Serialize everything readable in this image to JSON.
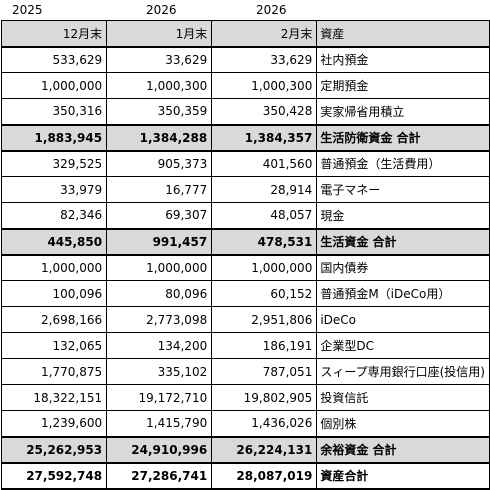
{
  "years": [
    "2025",
    "2026",
    "2026"
  ],
  "header": {
    "col1": "12月末",
    "col2": "1月末",
    "col3": "2月末",
    "col4": "資産"
  },
  "rows": [
    {
      "type": "normal",
      "v1": "533,629",
      "v2": "33,629",
      "v3": "33,629",
      "label": "社内預金"
    },
    {
      "type": "normal",
      "v1": "1,000,000",
      "v2": "1,000,300",
      "v3": "1,000,300",
      "label": "定期預金"
    },
    {
      "type": "normal",
      "v1": "350,316",
      "v2": "350,359",
      "v3": "350,428",
      "label": "実家帰省用積立"
    },
    {
      "type": "sub",
      "v1": "1,883,945",
      "v2": "1,384,288",
      "v3": "1,384,357",
      "label": "生活防衛資金 合計"
    },
    {
      "type": "normal",
      "v1": "329,525",
      "v2": "905,373",
      "v3": "401,560",
      "label": "普通預金（生活費用）"
    },
    {
      "type": "normal",
      "v1": "33,979",
      "v2": "16,777",
      "v3": "28,914",
      "label": "電子マネー"
    },
    {
      "type": "normal",
      "v1": "82,346",
      "v2": "69,307",
      "v3": "48,057",
      "label": "現金"
    },
    {
      "type": "sub",
      "v1": "445,850",
      "v2": "991,457",
      "v3": "478,531",
      "label": "生活資金 合計"
    },
    {
      "type": "normal",
      "v1": "1,000,000",
      "v2": "1,000,000",
      "v3": "1,000,000",
      "label": "国内債券"
    },
    {
      "type": "normal",
      "v1": "100,096",
      "v2": "80,096",
      "v3": "60,152",
      "label": "普通預金M（iDeCo用）"
    },
    {
      "type": "normal",
      "v1": "2,698,166",
      "v2": "2,773,098",
      "v3": "2,951,806",
      "label": "iDeCo"
    },
    {
      "type": "normal",
      "v1": "132,065",
      "v2": "134,200",
      "v3": "186,191",
      "label": "企業型DC"
    },
    {
      "type": "normal",
      "v1": "1,770,875",
      "v2": "335,102",
      "v3": "787,051",
      "label": "スィープ専用銀行口座(投信用)"
    },
    {
      "type": "normal",
      "v1": "18,322,151",
      "v2": "19,172,710",
      "v3": "19,802,905",
      "label": "投資信託"
    },
    {
      "type": "normal",
      "v1": "1,239,600",
      "v2": "1,415,790",
      "v3": "1,436,026",
      "label": "個別株"
    },
    {
      "type": "sub",
      "v1": "25,262,953",
      "v2": "24,910,996",
      "v3": "26,224,131",
      "label": "余裕資金 合計"
    },
    {
      "type": "total",
      "v1": "27,592,748",
      "v2": "27,286,741",
      "v3": "28,087,019",
      "label": "資産合計"
    }
  ]
}
